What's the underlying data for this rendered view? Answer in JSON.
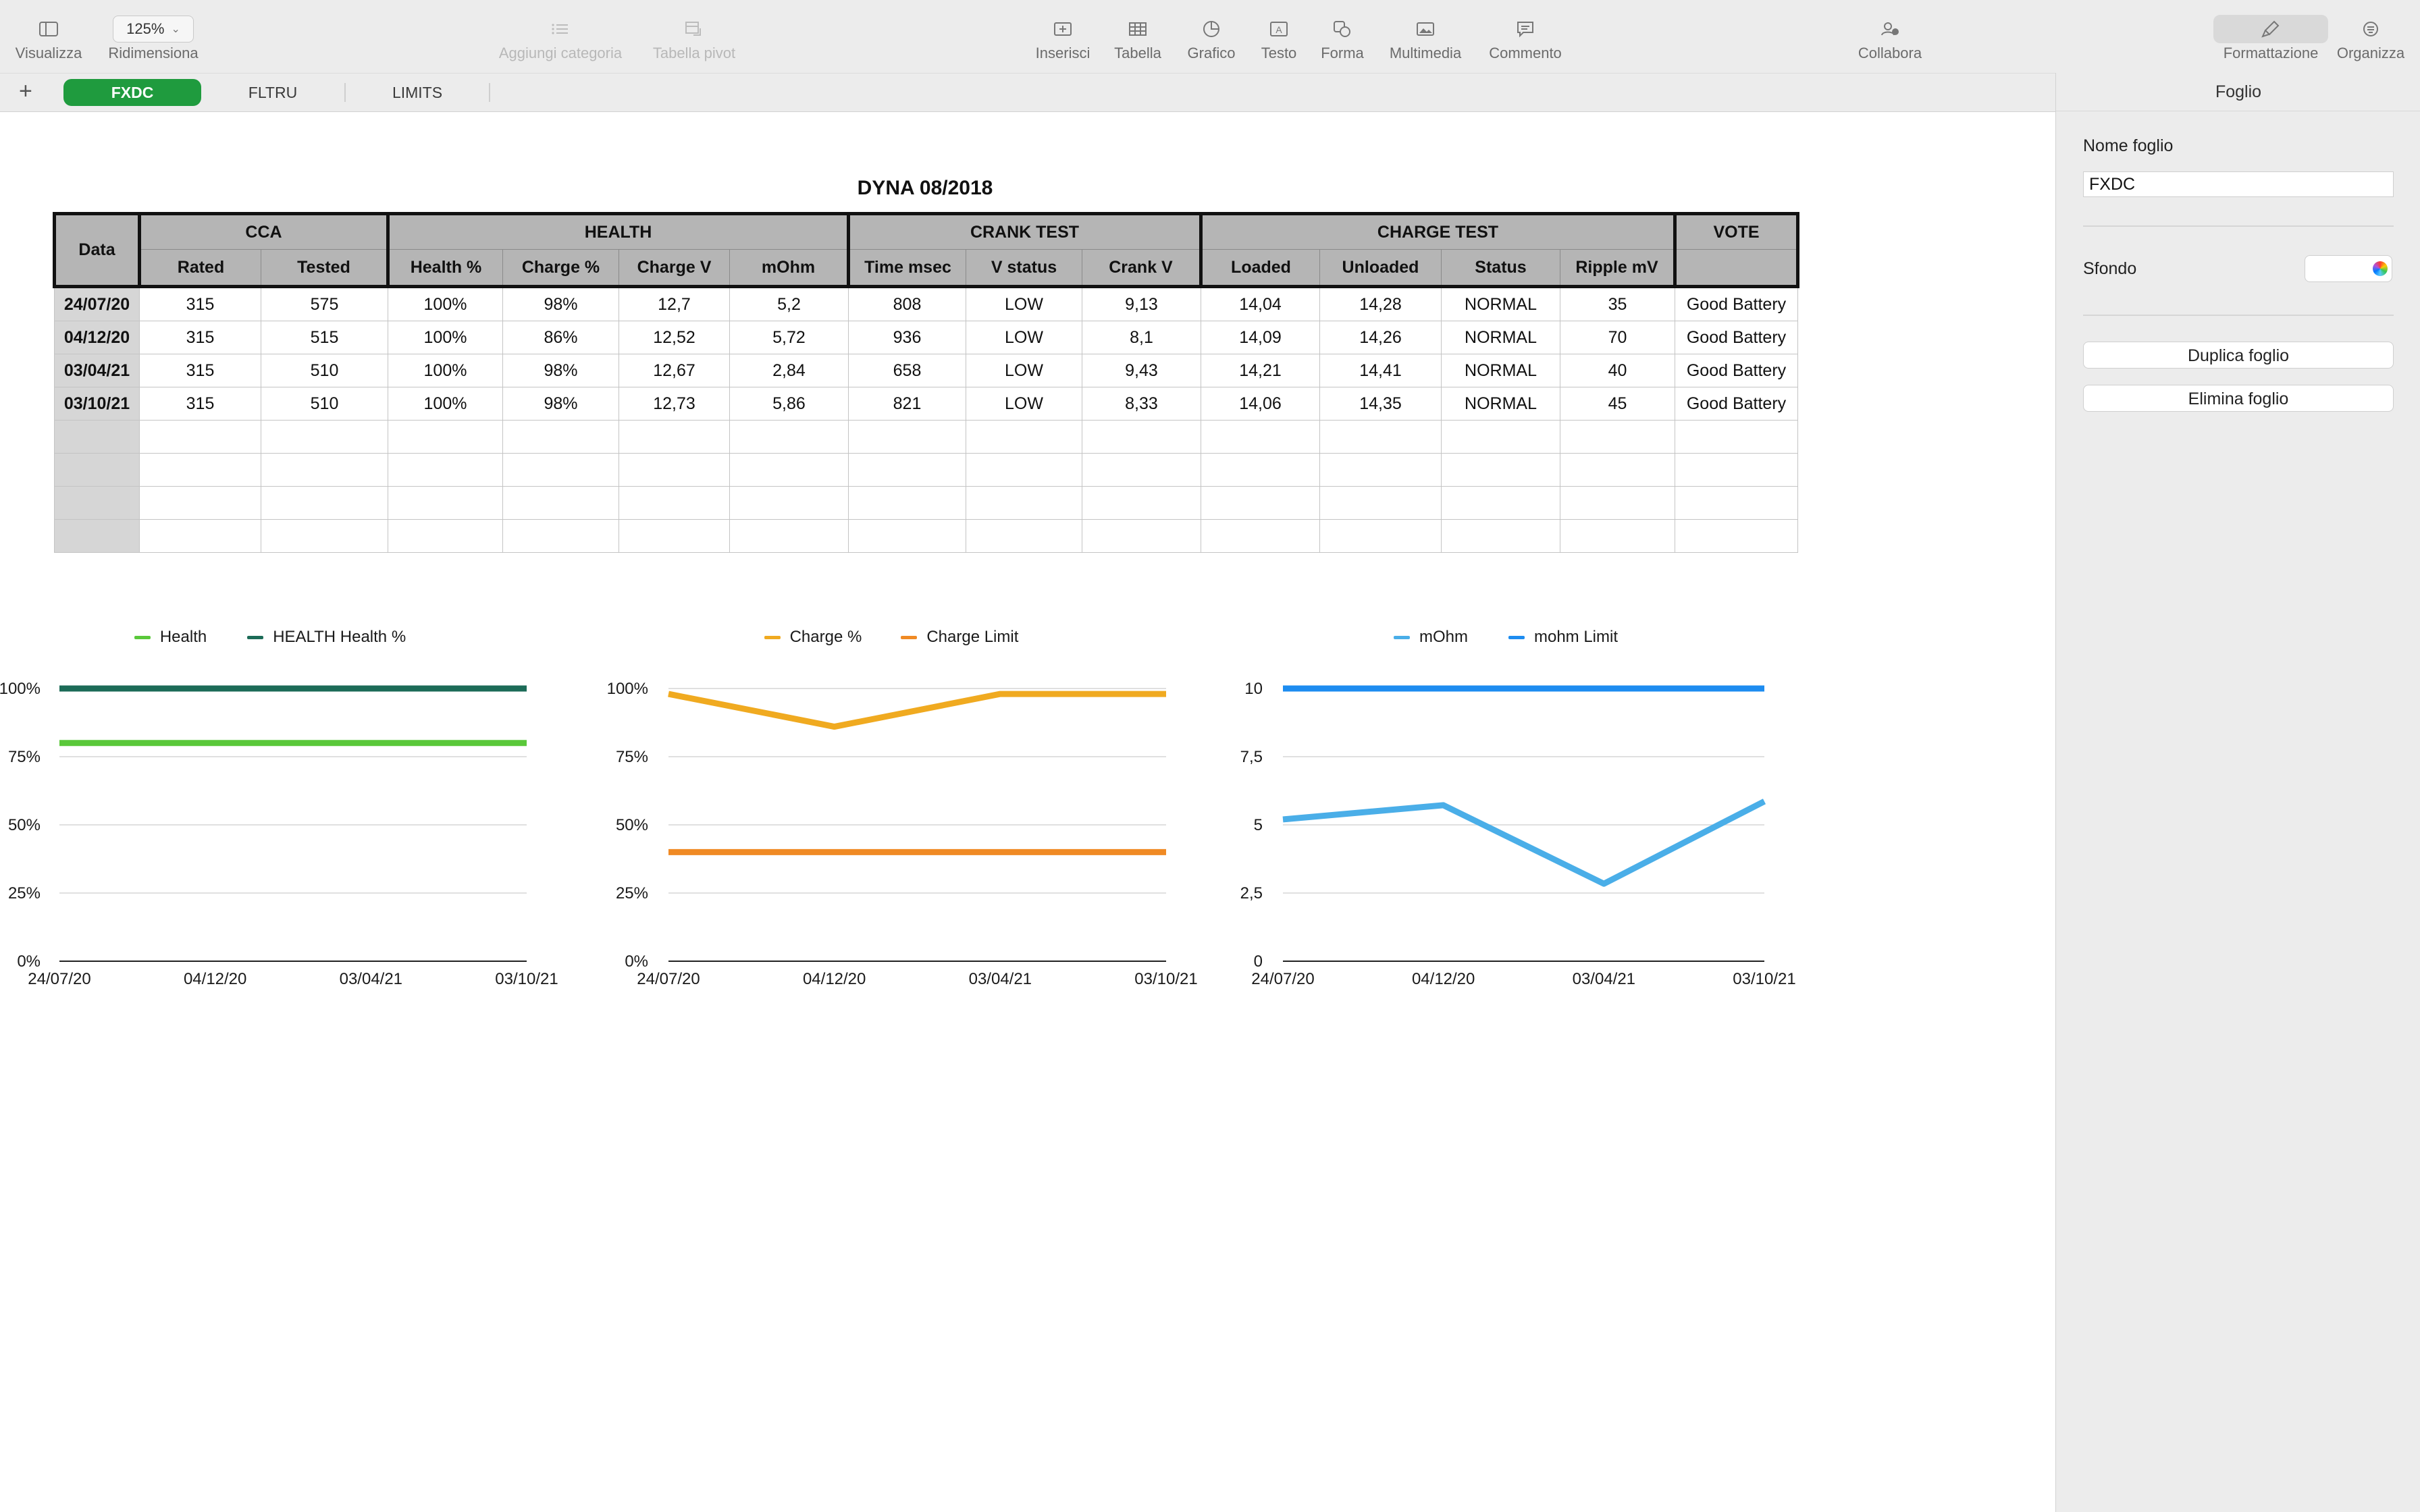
{
  "toolbar": {
    "zoom": "125%",
    "items": [
      {
        "key": "visualizza",
        "label": "Visualizza",
        "icon": "sidebar-icon"
      },
      {
        "key": "ridimensiona",
        "label": "Ridimensiona"
      },
      {
        "key": "aggiungi_categoria",
        "label": "Aggiungi categoria",
        "icon": "list-icon"
      },
      {
        "key": "tabella_pivot",
        "label": "Tabella pivot",
        "icon": "pivot-icon"
      },
      {
        "key": "inserisci",
        "label": "Inserisci",
        "icon": "insert-icon"
      },
      {
        "key": "tabella",
        "label": "Tabella",
        "icon": "table-icon"
      },
      {
        "key": "grafico",
        "label": "Grafico",
        "icon": "chart-icon"
      },
      {
        "key": "testo",
        "label": "Testo",
        "icon": "text-icon"
      },
      {
        "key": "forma",
        "label": "Forma",
        "icon": "shape-icon"
      },
      {
        "key": "multimedia",
        "label": "Multimedia",
        "icon": "media-icon"
      },
      {
        "key": "commento",
        "label": "Commento",
        "icon": "comment-icon"
      },
      {
        "key": "collabora",
        "label": "Collabora",
        "icon": "collaborate-icon"
      },
      {
        "key": "formattazione",
        "label": "Formattazione",
        "icon": "paintbrush-icon"
      },
      {
        "key": "organizza",
        "label": "Organizza",
        "icon": "organize-icon"
      }
    ]
  },
  "tabs": {
    "add": "+",
    "items": [
      {
        "label": "FXDC",
        "active": true
      },
      {
        "label": "FLTRU",
        "active": false
      },
      {
        "label": "LIMITS",
        "active": false
      }
    ]
  },
  "inspector": {
    "title": "Foglio",
    "sheet_name_label": "Nome foglio",
    "sheet_name_value": "FXDC",
    "background_label": "Sfondo",
    "duplicate_button": "Duplica foglio",
    "delete_button": "Elimina foglio"
  },
  "sheet": {
    "title": "DYNA 08/2018",
    "group_headers": {
      "data": "Data",
      "cca": "CCA",
      "health": "HEALTH",
      "crank": "CRANK TEST",
      "charge": "CHARGE TEST",
      "vote": "VOTE"
    },
    "columns": [
      "Rated",
      "Tested",
      "Health %",
      "Charge %",
      "Charge V",
      "mOhm",
      "Time msec",
      "V status",
      "Crank V",
      "Loaded",
      "Unloaded",
      "Status",
      "Ripple mV",
      ""
    ],
    "rows": [
      {
        "date": "24/07/20",
        "cells": [
          "315",
          "575",
          "100%",
          "98%",
          "12,7",
          "5,2",
          "808",
          "LOW",
          "9,13",
          "14,04",
          "14,28",
          "NORMAL",
          "35",
          "Good Battery"
        ]
      },
      {
        "date": "04/12/20",
        "cells": [
          "315",
          "515",
          "100%",
          "86%",
          "12,52",
          "5,72",
          "936",
          "LOW",
          "8,1",
          "14,09",
          "14,26",
          "NORMAL",
          "70",
          "Good Battery"
        ]
      },
      {
        "date": "03/04/21",
        "cells": [
          "315",
          "510",
          "100%",
          "98%",
          "12,67",
          "2,84",
          "658",
          "LOW",
          "9,43",
          "14,21",
          "14,41",
          "NORMAL",
          "40",
          "Good Battery"
        ]
      },
      {
        "date": "03/10/21",
        "cells": [
          "315",
          "510",
          "100%",
          "98%",
          "12,73",
          "5,86",
          "821",
          "LOW",
          "8,33",
          "14,06",
          "14,35",
          "NORMAL",
          "45",
          "Good Battery"
        ]
      }
    ],
    "empty_rows": 4
  },
  "chart_data": [
    {
      "type": "line",
      "categories": [
        "24/07/20",
        "04/12/20",
        "03/04/21",
        "03/10/21"
      ],
      "ylim": [
        0,
        1
      ],
      "yticks": [
        "0%",
        "25%",
        "50%",
        "75%",
        "100%"
      ],
      "series": [
        {
          "name": "Health",
          "color": "#5ac83a",
          "values": [
            0.8,
            0.8,
            0.8,
            0.8
          ]
        },
        {
          "name": "HEALTH Health %",
          "color": "#1c6b57",
          "values": [
            1,
            1,
            1,
            1
          ]
        }
      ]
    },
    {
      "type": "line",
      "categories": [
        "24/07/20",
        "04/12/20",
        "03/04/21",
        "03/10/21"
      ],
      "ylim": [
        0,
        1
      ],
      "yticks": [
        "0%",
        "25%",
        "50%",
        "75%",
        "100%"
      ],
      "series": [
        {
          "name": "Charge %",
          "color": "#f0aa20",
          "values": [
            0.98,
            0.86,
            0.98,
            0.98
          ]
        },
        {
          "name": "Charge Limit",
          "color": "#f08a24",
          "values": [
            0.4,
            0.4,
            0.4,
            0.4
          ]
        }
      ]
    },
    {
      "type": "line",
      "categories": [
        "24/07/20",
        "04/12/20",
        "03/04/21",
        "03/10/21"
      ],
      "ylim": [
        0,
        10
      ],
      "yticks": [
        "0",
        "2,5",
        "5",
        "7,5",
        "10"
      ],
      "series": [
        {
          "name": "mOhm",
          "color": "#4aaee8",
          "values": [
            5.2,
            5.72,
            2.84,
            5.86
          ]
        },
        {
          "name": "mohm Limit",
          "color": "#1d8cf0",
          "values": [
            10,
            10,
            10,
            10
          ]
        }
      ]
    }
  ]
}
